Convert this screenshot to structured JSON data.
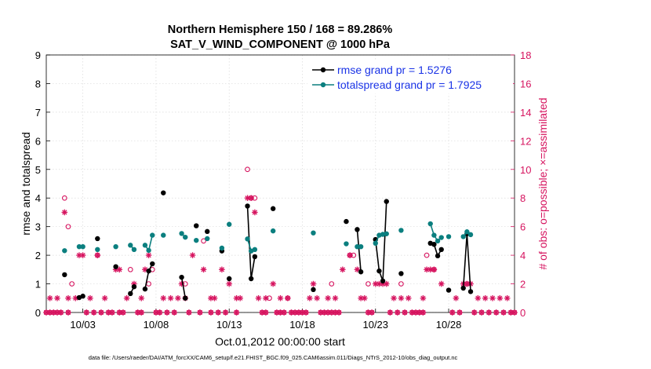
{
  "chart_data": {
    "type": "line",
    "title": "Northern Hemisphere 150 / 168 = 89.286%",
    "subtitle": "SAT_V_WIND_COMPONENT @ 1000 hPa",
    "xlabel": "Oct.01,2012 00:00:00 start",
    "ylabel_left": "rmse and totalspread",
    "ylabel_right": "# of obs: o=possible; ×=assimilated",
    "footnote": "data file: /Users/raeder/DAI/ATM_forcXX/CAM6_setup/f.e21.FHIST_BGC.f09_025.CAM6assim.011/Diags_NTrS_2012-10/obs_diag_output.nc",
    "xlim": [
      0.5,
      32.5
    ],
    "x_ticks": [
      3,
      8,
      13,
      18,
      23,
      28
    ],
    "x_tick_labels": [
      "10/03",
      "10/08",
      "10/13",
      "10/18",
      "10/23",
      "10/28"
    ],
    "ylim_left": [
      0,
      9
    ],
    "yticks_left": [
      "0",
      "1",
      "2",
      "3",
      "4",
      "5",
      "6",
      "7",
      "8",
      "9"
    ],
    "ylim_right": [
      0,
      18
    ],
    "yticks_right": [
      "0",
      "2",
      "4",
      "6",
      "8",
      "10",
      "12",
      "14",
      "16",
      "18"
    ],
    "legend_position": "top-right",
    "colors": {
      "rmse": "#000000",
      "spread": "#0b7f7f",
      "obs": "#d6145f",
      "legend_text": "#1a33e6"
    },
    "series": [
      {
        "name": "rmse grand pr = 1.5276",
        "axis": "left",
        "points": [
          [
            1.75,
            1.32
          ],
          [
            2.75,
            0.52
          ],
          [
            3.0,
            0.57
          ],
          [
            4.0,
            2.58
          ],
          [
            5.25,
            1.6
          ],
          [
            6.25,
            0.66
          ],
          [
            6.5,
            0.9
          ],
          [
            7.25,
            0.82
          ],
          [
            7.5,
            1.45
          ],
          [
            7.75,
            1.7
          ],
          [
            8.5,
            4.18
          ],
          [
            9.75,
            1.23
          ],
          [
            10.0,
            0.5
          ],
          [
            10.75,
            3.03
          ],
          [
            11.5,
            2.83
          ],
          [
            12.5,
            2.15
          ],
          [
            13.0,
            1.18
          ],
          [
            14.25,
            3.72
          ],
          [
            14.5,
            1.18
          ],
          [
            14.75,
            1.95
          ],
          [
            16.0,
            3.63
          ],
          [
            18.75,
            0.8
          ],
          [
            21.0,
            3.18
          ],
          [
            21.75,
            2.9
          ],
          [
            22.0,
            1.42
          ],
          [
            23.0,
            2.55
          ],
          [
            23.25,
            1.45
          ],
          [
            23.5,
            1.1
          ],
          [
            23.75,
            3.88
          ],
          [
            24.75,
            1.36
          ],
          [
            26.75,
            2.42
          ],
          [
            27.0,
            2.38
          ],
          [
            27.25,
            1.98
          ],
          [
            27.5,
            2.2
          ],
          [
            28.0,
            0.78
          ],
          [
            29.0,
            0.85
          ],
          [
            29.25,
            2.75
          ],
          [
            29.5,
            0.73
          ]
        ]
      },
      {
        "name": "totalspread grand pr = 1.7925",
        "axis": "left",
        "points": [
          [
            1.75,
            2.16
          ],
          [
            2.75,
            2.3
          ],
          [
            3.0,
            2.3
          ],
          [
            4.0,
            2.2
          ],
          [
            5.25,
            2.3
          ],
          [
            6.25,
            2.35
          ],
          [
            6.5,
            2.2
          ],
          [
            7.25,
            2.35
          ],
          [
            7.5,
            2.17
          ],
          [
            7.75,
            2.7
          ],
          [
            8.5,
            2.7
          ],
          [
            9.75,
            2.76
          ],
          [
            10.0,
            2.63
          ],
          [
            10.75,
            2.52
          ],
          [
            11.5,
            2.58
          ],
          [
            12.5,
            2.25
          ],
          [
            13.0,
            3.08
          ],
          [
            14.25,
            2.57
          ],
          [
            14.5,
            2.15
          ],
          [
            14.75,
            2.2
          ],
          [
            16.0,
            2.85
          ],
          [
            18.75,
            2.78
          ],
          [
            21.0,
            2.4
          ],
          [
            21.75,
            2.3
          ],
          [
            22.0,
            2.3
          ],
          [
            23.0,
            2.42
          ],
          [
            23.25,
            2.7
          ],
          [
            23.5,
            2.73
          ],
          [
            23.75,
            2.75
          ],
          [
            24.75,
            2.87
          ],
          [
            26.75,
            3.1
          ],
          [
            27.0,
            2.7
          ],
          [
            27.25,
            2.5
          ],
          [
            27.5,
            2.62
          ],
          [
            28.0,
            2.65
          ],
          [
            29.0,
            2.65
          ],
          [
            29.25,
            2.82
          ],
          [
            29.5,
            2.72
          ]
        ]
      }
    ],
    "obs_possible": {
      "name": "# of obs possible",
      "axis": "right",
      "marker": "o",
      "points": [
        [
          1.75,
          8.0
        ],
        [
          2.0,
          6.0
        ],
        [
          2.25,
          2.0
        ],
        [
          4.0,
          4.0
        ],
        [
          6.25,
          3.0
        ],
        [
          7.5,
          2.0
        ],
        [
          7.75,
          3.0
        ],
        [
          10.0,
          2.0
        ],
        [
          11.25,
          5.0
        ],
        [
          14.25,
          10.0
        ],
        [
          14.5,
          8.0
        ],
        [
          14.75,
          8.0
        ],
        [
          15.75,
          1.0
        ],
        [
          17.0,
          1.0
        ],
        [
          20.0,
          2.0
        ],
        [
          21.25,
          4.0
        ],
        [
          21.5,
          4.0
        ],
        [
          22.5,
          2.0
        ],
        [
          24.75,
          2.0
        ],
        [
          26.5,
          4.0
        ],
        [
          27.0,
          3.0
        ],
        [
          29.25,
          2.0
        ]
      ]
    },
    "obs_assimilated": {
      "name": "# of obs assimilated",
      "axis": "right",
      "marker": "x",
      "points": [
        [
          0.75,
          1
        ],
        [
          1.25,
          1
        ],
        [
          1.75,
          7
        ],
        [
          2.0,
          1
        ],
        [
          2.5,
          1
        ],
        [
          2.75,
          4
        ],
        [
          3.0,
          4
        ],
        [
          3.5,
          1
        ],
        [
          4.0,
          4
        ],
        [
          4.5,
          1
        ],
        [
          5.25,
          3
        ],
        [
          5.5,
          3
        ],
        [
          6.0,
          1
        ],
        [
          6.5,
          2
        ],
        [
          7.0,
          1
        ],
        [
          7.25,
          3
        ],
        [
          7.5,
          4
        ],
        [
          8.5,
          1
        ],
        [
          9.0,
          1
        ],
        [
          9.5,
          1
        ],
        [
          9.75,
          2
        ],
        [
          10.0,
          1
        ],
        [
          10.5,
          4
        ],
        [
          11.25,
          3
        ],
        [
          11.75,
          1
        ],
        [
          12.0,
          1
        ],
        [
          12.5,
          3
        ],
        [
          13.0,
          2
        ],
        [
          13.5,
          1
        ],
        [
          13.75,
          1
        ],
        [
          14.25,
          8
        ],
        [
          14.5,
          8
        ],
        [
          14.75,
          7
        ],
        [
          15.0,
          1
        ],
        [
          15.5,
          1
        ],
        [
          16.0,
          2
        ],
        [
          16.5,
          1
        ],
        [
          17.0,
          1
        ],
        [
          18.5,
          1
        ],
        [
          18.75,
          2
        ],
        [
          19.0,
          1
        ],
        [
          19.75,
          1
        ],
        [
          20.25,
          1
        ],
        [
          20.75,
          3
        ],
        [
          21.25,
          4
        ],
        [
          21.75,
          3
        ],
        [
          22.0,
          1
        ],
        [
          22.25,
          1
        ],
        [
          23.0,
          2
        ],
        [
          23.25,
          2
        ],
        [
          23.5,
          2
        ],
        [
          23.75,
          2
        ],
        [
          24.25,
          1
        ],
        [
          24.75,
          1
        ],
        [
          25.25,
          1
        ],
        [
          26.25,
          1
        ],
        [
          26.5,
          3
        ],
        [
          26.75,
          3
        ],
        [
          27.0,
          3
        ],
        [
          27.5,
          2
        ],
        [
          28.5,
          1
        ],
        [
          29.0,
          2
        ],
        [
          29.25,
          2
        ],
        [
          29.5,
          2
        ],
        [
          30.0,
          1
        ],
        [
          30.5,
          1
        ],
        [
          31.0,
          1
        ],
        [
          31.5,
          1
        ],
        [
          32.0,
          1
        ]
      ]
    },
    "obs_zero_x": [
      0.5,
      0.75,
      1.0,
      1.25,
      1.5,
      2.0,
      3.25,
      3.75,
      4.25,
      4.75,
      5.0,
      5.5,
      5.75,
      6.75,
      7.0,
      8.0,
      8.25,
      8.75,
      9.25,
      10.25,
      11.0,
      11.75,
      12.25,
      12.75,
      13.5,
      15.25,
      15.5,
      16.25,
      16.5,
      16.75,
      17.25,
      17.5,
      17.75,
      18.0,
      18.25,
      19.25,
      19.5,
      19.75,
      20.0,
      20.25,
      20.5,
      22.5,
      22.75,
      24.0,
      24.5,
      25.0,
      25.5,
      25.75,
      26.0,
      26.25,
      28.25,
      28.75,
      29.75,
      30.25,
      30.75,
      31.25,
      31.75,
      32.25,
      32.5
    ]
  }
}
